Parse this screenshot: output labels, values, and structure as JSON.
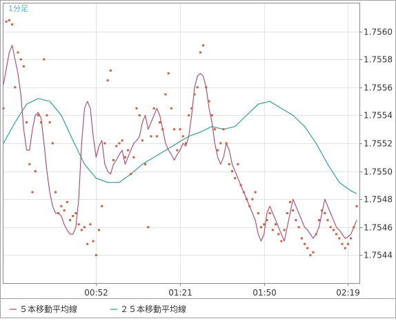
{
  "chart_data": {
    "type": "line",
    "label": "1分足",
    "ylim": [
      1.7542,
      1.7562
    ],
    "y_ticks": [
      "1.7560",
      "1.7558",
      "1.7556",
      "1.7554",
      "1.7552",
      "1.7550",
      "1.7548",
      "1.7546",
      "1.7544"
    ],
    "x_tick_labels": [
      {
        "t": 32,
        "label": "00:52"
      },
      {
        "t": 61,
        "label": "01:21"
      },
      {
        "t": 90,
        "label": "01:50"
      },
      {
        "t": 119,
        "label": "02:19"
      }
    ],
    "x_range": [
      0,
      122
    ],
    "grid": true,
    "legend": [
      {
        "label": "５本移動平均線",
        "color": "#b0406a"
      },
      {
        "label": "２５本移動平均線",
        "color": "#1f9b8a"
      }
    ],
    "series": [
      {
        "name": "５本移動平均線",
        "color": "#b0406a",
        "x": [
          0,
          2,
          3,
          4,
          5,
          6,
          7,
          8,
          9,
          10,
          11,
          12,
          13,
          14,
          15,
          16,
          17,
          18,
          19,
          20,
          21,
          22,
          23,
          24,
          25,
          26,
          27,
          28,
          29,
          30,
          31,
          32,
          33,
          34,
          35,
          36,
          37,
          38,
          39,
          40,
          41,
          42,
          43,
          44,
          45,
          46,
          47,
          48,
          49,
          50,
          51,
          52,
          53,
          54,
          55,
          56,
          57,
          58,
          59,
          60,
          61,
          62,
          63,
          64,
          65,
          66,
          67,
          68,
          69,
          70,
          71,
          72,
          73,
          74,
          75,
          76,
          77,
          78,
          79,
          80,
          81,
          82,
          83,
          84,
          85,
          86,
          87,
          88,
          89,
          90,
          91,
          92,
          93,
          94,
          95,
          96,
          97,
          98,
          99,
          100,
          101,
          102,
          103,
          104,
          105,
          106,
          107,
          108,
          109,
          110,
          111,
          112,
          113,
          114,
          115,
          116,
          117,
          118,
          119,
          120,
          121,
          122
        ],
        "values": [
          1.75562,
          1.75585,
          1.7559,
          1.7558,
          1.7557,
          1.75555,
          1.7553,
          1.75515,
          1.75515,
          1.7553,
          1.7554,
          1.75542,
          1.75538,
          1.7552,
          1.755,
          1.75485,
          1.75475,
          1.7547,
          1.7547,
          1.75468,
          1.75462,
          1.75458,
          1.75455,
          1.75455,
          1.7546,
          1.7548,
          1.7552,
          1.75545,
          1.7555,
          1.75545,
          1.75525,
          1.7551,
          1.75518,
          1.75522,
          1.75505,
          1.755,
          1.75498,
          1.75505,
          1.75508,
          1.75512,
          1.75515,
          1.75505,
          1.7551,
          1.75515,
          1.7552,
          1.75522,
          1.75525,
          1.75535,
          1.7554,
          1.7553,
          1.75535,
          1.7554,
          1.75545,
          1.7554,
          1.7553,
          1.7552,
          1.75515,
          1.75512,
          1.75508,
          1.75512,
          1.75515,
          1.7552,
          1.75518,
          1.75525,
          1.7554,
          1.7556,
          1.75568,
          1.7557,
          1.75568,
          1.7556,
          1.75545,
          1.75535,
          1.7552,
          1.7551,
          1.75505,
          1.7551,
          1.7552,
          1.75515,
          1.75505,
          1.755,
          1.75495,
          1.7549,
          1.75485,
          1.7548,
          1.75475,
          1.7547,
          1.75465,
          1.75455,
          1.7545,
          1.75455,
          1.7547,
          1.75475,
          1.7547,
          1.75465,
          1.7546,
          1.75455,
          1.7545,
          1.7546,
          1.7547,
          1.7548,
          1.75475,
          1.7547,
          1.75465,
          1.7546,
          1.75458,
          1.75455,
          1.75452,
          1.75455,
          1.7546,
          1.7547,
          1.7548,
          1.75475,
          1.7547,
          1.75465,
          1.7546,
          1.75458,
          1.75455,
          1.75452,
          1.75453,
          1.75455,
          1.7546,
          1.75465
        ],
        "note_unused": ""
      },
      {
        "name": "２５本移動平均線",
        "color": "#1f9b8a",
        "x": [
          0,
          4,
          8,
          12,
          16,
          20,
          24,
          28,
          32,
          36,
          40,
          44,
          48,
          52,
          56,
          60,
          64,
          68,
          72,
          76,
          80,
          84,
          88,
          92,
          96,
          100,
          104,
          108,
          112,
          116,
          120,
          122
        ],
        "values": [
          1.7552,
          1.75535,
          1.75548,
          1.75552,
          1.7555,
          1.7554,
          1.75522,
          1.75505,
          1.75495,
          1.75492,
          1.75492,
          1.75498,
          1.75505,
          1.7551,
          1.75515,
          1.7552,
          1.75525,
          1.75528,
          1.75532,
          1.7553,
          1.75532,
          1.7554,
          1.75548,
          1.7555,
          1.75545,
          1.7554,
          1.75532,
          1.7552,
          1.75505,
          1.75492,
          1.75486,
          1.75484
        ]
      }
    ],
    "points": {
      "name": "",
      "color": "#d35a3a",
      "x": [
        0,
        1,
        2,
        3,
        4,
        5,
        6,
        7,
        8,
        9,
        10,
        11,
        12,
        13,
        14,
        15,
        16,
        17,
        18,
        19,
        20,
        21,
        22,
        23,
        24,
        25,
        26,
        27,
        28,
        29,
        30,
        31,
        32,
        33,
        34,
        35,
        36,
        37,
        38,
        39,
        40,
        41,
        42,
        43,
        44,
        45,
        46,
        47,
        48,
        49,
        50,
        51,
        52,
        53,
        54,
        55,
        56,
        57,
        58,
        59,
        60,
        61,
        62,
        63,
        64,
        65,
        66,
        67,
        68,
        69,
        70,
        71,
        72,
        73,
        74,
        75,
        76,
        77,
        78,
        79,
        80,
        81,
        82,
        83,
        84,
        85,
        86,
        87,
        88,
        89,
        90,
        91,
        92,
        93,
        94,
        95,
        96,
        97,
        98,
        99,
        100,
        101,
        102,
        103,
        104,
        105,
        106,
        107,
        108,
        109,
        110,
        111,
        112,
        113,
        114,
        115,
        116,
        117,
        118,
        119,
        120,
        121,
        122
      ],
      "values": [
        1.75545,
        1.75607,
        1.75608,
        1.75605,
        1.7556,
        1.75585,
        1.7558,
        1.75575,
        1.75535,
        1.75505,
        1.75485,
        1.755,
        1.7554,
        1.75535,
        1.7558,
        1.7554,
        1.75535,
        1.7552,
        1.75485,
        1.7547,
        1.75475,
        1.75472,
        1.75478,
        1.75465,
        1.75468,
        1.7547,
        1.75462,
        1.75458,
        1.7546,
        1.75448,
        1.75462,
        1.7545,
        1.7544,
        1.75458,
        1.75475,
        1.7552,
        1.75565,
        1.75572,
        1.75508,
        1.75518,
        1.7552,
        1.75522,
        1.7551,
        1.75515,
        1.75498,
        1.7551,
        1.75545,
        1.7554,
        1.75522,
        1.75505,
        1.7546,
        1.75525,
        1.75545,
        1.75525,
        1.75535,
        1.7553,
        1.75555,
        1.7557,
        1.75545,
        1.7553,
        1.75515,
        1.7553,
        1.75525,
        1.7552,
        1.7554,
        1.75545,
        1.75555,
        1.7556,
        1.75585,
        1.7559,
        1.7556,
        1.7555,
        1.7554,
        1.7553,
        1.75515,
        1.7552,
        1.7553,
        1.7552,
        1.75505,
        1.755,
        1.75495,
        1.75505,
        1.7549,
        1.75485,
        1.7548,
        1.75475,
        1.7548,
        1.75485,
        1.7547,
        1.7546,
        1.75462,
        1.75465,
        1.7547,
        1.75458,
        1.75462,
        1.75455,
        1.7545,
        1.75458,
        1.7547,
        1.75478,
        1.75472,
        1.75465,
        1.7546,
        1.75452,
        1.75448,
        1.75445,
        1.7544,
        1.75442,
        1.75455,
        1.75465,
        1.75472,
        1.7547,
        1.75465,
        1.7546,
        1.75458,
        1.75455,
        1.75452,
        1.75448,
        1.75445,
        1.75448,
        1.75452,
        1.7546,
        1.75475
      ]
    }
  }
}
